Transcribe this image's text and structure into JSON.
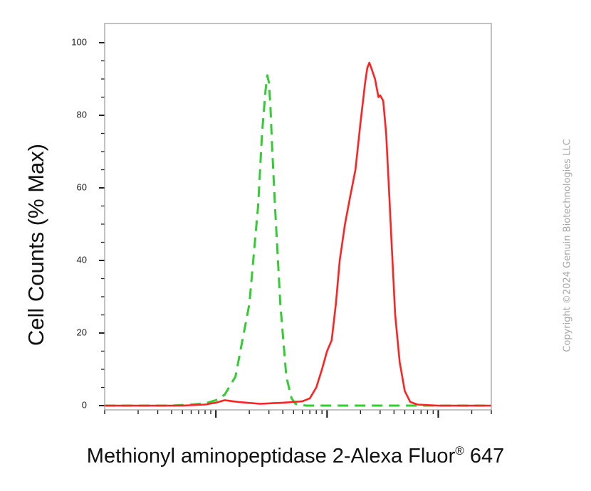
{
  "chart_data": {
    "type": "line",
    "title": "",
    "xlabel": "Methionyl aminopeptidase 2-Alexa Fluor",
    "xlabel_mark": "®",
    "xlabel_suffix": "647",
    "ylabel": "Cell Counts (% Max)",
    "ylim": [
      0,
      100
    ],
    "yticks": [
      0,
      20,
      40,
      60,
      80,
      100
    ],
    "xscale": "log",
    "xlim": [
      10,
      30000
    ],
    "legend": "none",
    "series": [
      {
        "color": "#33cc33",
        "style": "dashed",
        "x": [
          10,
          40,
          60,
          80,
          100,
          120,
          150,
          200,
          240,
          260,
          280,
          290,
          300,
          310,
          320,
          340,
          380,
          430,
          480,
          520,
          580,
          650,
          30000
        ],
        "y": [
          0,
          0,
          0.3,
          0.6,
          1.5,
          3,
          8,
          28,
          55,
          75,
          87,
          91,
          89,
          82,
          72,
          55,
          28,
          8,
          2,
          0.5,
          0.2,
          0,
          0
        ]
      },
      {
        "color": "#ff2222",
        "style": "solid",
        "x": [
          10,
          50,
          80,
          100,
          120,
          160,
          250,
          400,
          600,
          700,
          800,
          900,
          1000,
          1100,
          1200,
          1300,
          1450,
          1600,
          1800,
          2000,
          2200,
          2300,
          2400,
          2500,
          2700,
          2900,
          3000,
          3200,
          3400,
          3600,
          3800,
          4100,
          4500,
          5000,
          5600,
          6500,
          10000,
          30000
        ],
        "y": [
          0,
          0,
          0.3,
          0.8,
          1.5,
          1,
          0.5,
          0.8,
          1.2,
          2,
          5,
          10,
          15,
          18,
          28,
          40,
          50,
          57,
          65,
          78,
          89,
          93,
          94.5,
          93,
          90,
          85,
          85.5,
          84,
          75,
          60,
          45,
          25,
          12,
          4,
          1,
          0.3,
          0,
          0
        ]
      }
    ]
  },
  "watermark": "Copyright ©2024 Genuin Biotechnologies LLC"
}
